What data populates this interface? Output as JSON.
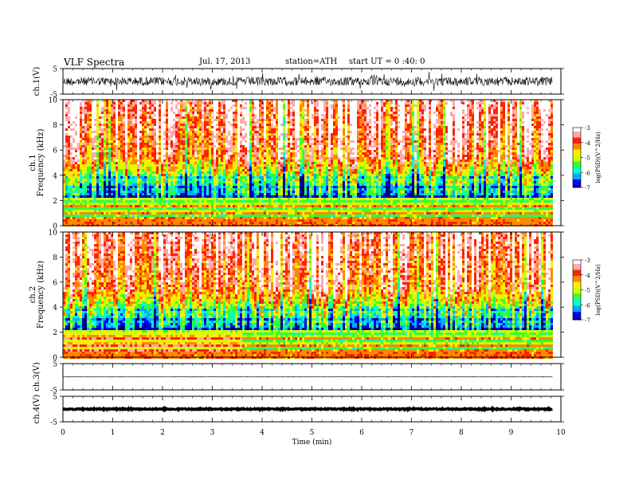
{
  "header": {
    "title": "VLF  Spectra",
    "date": "Jul.  17, 2013",
    "station": "station=ATH",
    "start": "start  UT =   0 :40: 0"
  },
  "chart_data": [
    {
      "type": "line",
      "title": "VLF  Spectra",
      "ylabel": "ch.1(V)",
      "ylim": [
        -5,
        5
      ],
      "yticks": [
        "5",
        "-5"
      ],
      "xlim": [
        0,
        10
      ],
      "colors": {
        "line": "#000000"
      }
    },
    {
      "type": "heatmap",
      "ylabel": "ch.1\nFrequency (kHz)",
      "ylim": [
        0,
        10
      ],
      "yticks": [
        "0",
        "2",
        "4",
        "6",
        "8",
        "10"
      ],
      "xlim": [
        0,
        10
      ],
      "colorbar": {
        "label": "log(PSD)(V^2/Hz)",
        "range": [
          -7,
          -3
        ],
        "ticks": [
          "-3",
          "-4",
          "-5",
          "-6",
          "-7"
        ]
      }
    },
    {
      "type": "heatmap",
      "ylabel": "ch.2\nFrequency (kHz)",
      "ylim": [
        0,
        10
      ],
      "yticks": [
        "0",
        "2",
        "4",
        "6",
        "8",
        "10"
      ],
      "xlim": [
        0,
        10
      ],
      "colorbar": {
        "label": "log(PSD)(V^2/Hz)",
        "range": [
          -7,
          -3
        ],
        "ticks": [
          "-3",
          "-4",
          "-5",
          "-6",
          "-7"
        ]
      }
    },
    {
      "type": "line",
      "ylabel": "ch.3(V)",
      "ylim": [
        -5,
        5
      ],
      "yticks": [
        "5",
        "-5"
      ],
      "xlim": [
        0,
        10
      ]
    },
    {
      "type": "line",
      "ylabel": "ch.4(V)",
      "ylim": [
        -5,
        5
      ],
      "yticks": [
        "5",
        "-5"
      ],
      "xlim": [
        0,
        10
      ],
      "xlabel": "Time  (min)",
      "xticks": [
        "0",
        "1",
        "2",
        "3",
        "4",
        "5",
        "6",
        "7",
        "8",
        "9",
        "10"
      ]
    }
  ],
  "colorscale": [
    "#000080",
    "#0000ff",
    "#00aaff",
    "#00ffcc",
    "#33ff33",
    "#ccff00",
    "#ffee00",
    "#ff8800",
    "#ff2200",
    "#ffaaaa",
    "#ffffff"
  ]
}
